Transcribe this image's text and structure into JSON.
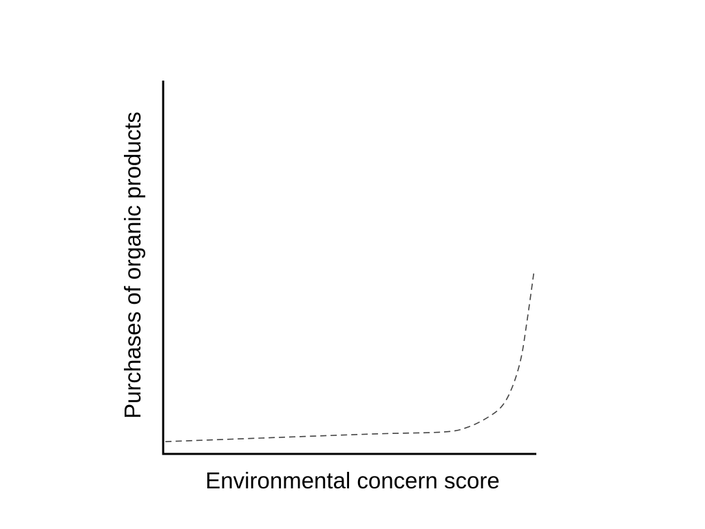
{
  "chart_data": {
    "type": "line",
    "title": "",
    "xlabel": "Environmental concern score",
    "ylabel": "Purchases of organic products",
    "xlim": [
      0,
      100
    ],
    "ylim": [
      0,
      100
    ],
    "grid": false,
    "ticks": false,
    "series": [
      {
        "style": "dashed",
        "color": "#444444",
        "x": [
          0.6,
          30.1,
          57.7,
          75.3,
          81.7,
          87.3,
          91.0,
          93.7,
          95.9,
          97.4,
          99.3
        ],
        "y": [
          3.3,
          4.4,
          5.4,
          5.9,
          7.2,
          10.0,
          13.1,
          18.3,
          25.7,
          34.9,
          48.4
        ]
      }
    ]
  }
}
